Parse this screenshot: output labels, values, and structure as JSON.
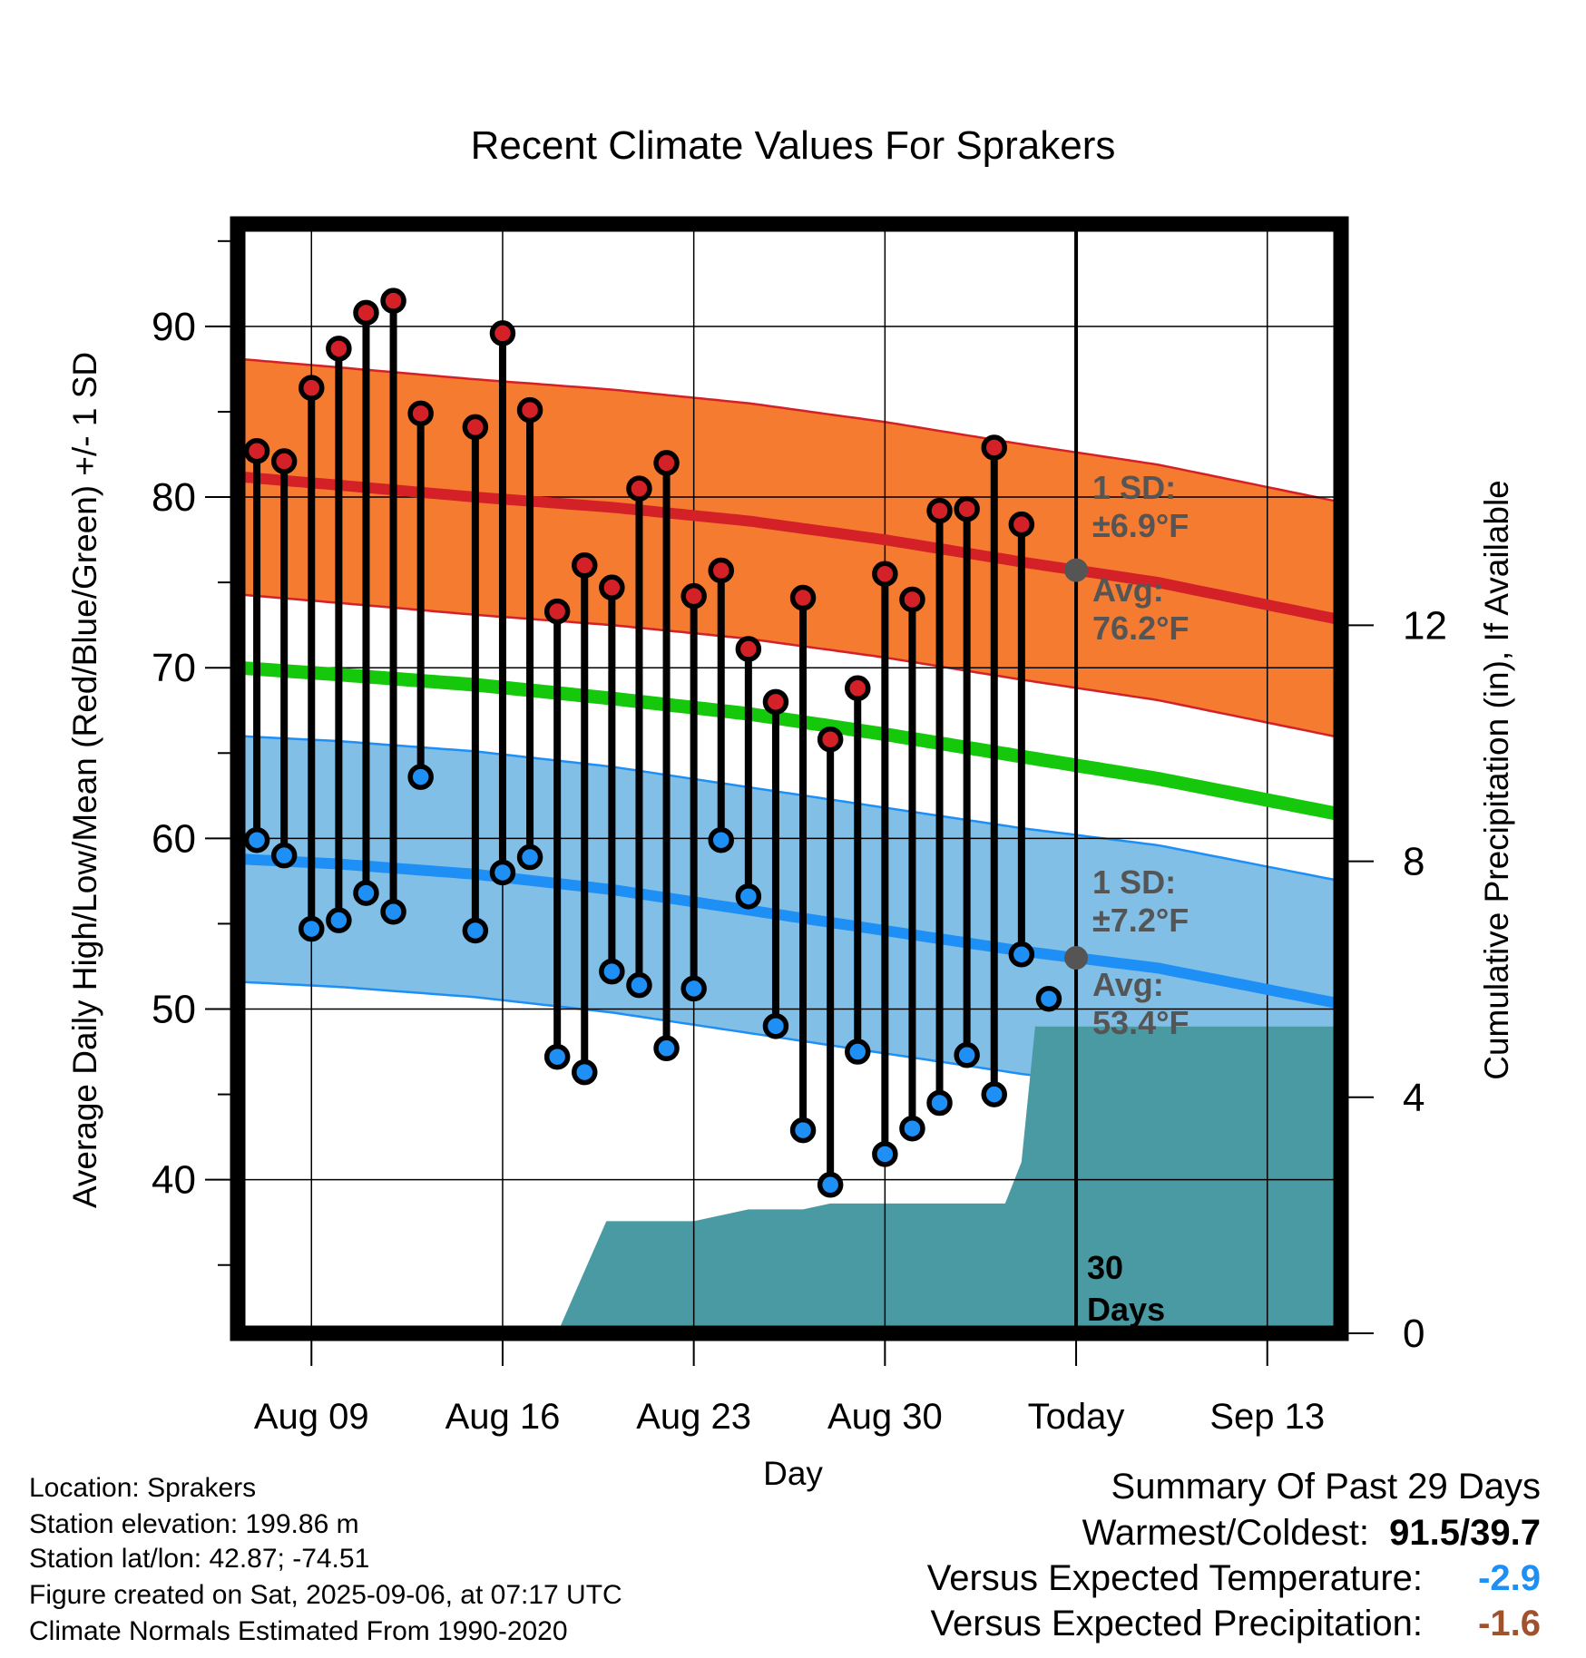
{
  "chart_data": {
    "type": "line",
    "title": "Recent Climate Values For Sprakers",
    "xlabel": "Day",
    "ylabel": "Average Daily High/Low/Mean (Red/Blue/Green) +/- 1 SD",
    "y2label": "Cumulative Precipitation (in), If Available",
    "ylim": [
      31,
      96
    ],
    "y2lim": [
      0,
      18.8
    ],
    "y_ticks": [
      40,
      50,
      60,
      70,
      80,
      90
    ],
    "y2_ticks": [
      0,
      4,
      8,
      12
    ],
    "x_tick_labels": [
      "Aug 09",
      "Aug 16",
      "Aug 23",
      "Aug 30",
      "Today",
      "Sep 13"
    ],
    "x_tick_days": [
      9,
      16,
      23,
      30,
      37,
      44
    ],
    "xlim": [
      6.3,
      46.7
    ],
    "grid": true,
    "today_day": 37,
    "observed_days": [
      7,
      8,
      9,
      10,
      11,
      12,
      13,
      15,
      16,
      17,
      18,
      19,
      20,
      21,
      22,
      23,
      24,
      25,
      26,
      27,
      28,
      29,
      30,
      31,
      32,
      33,
      34,
      35,
      36
    ],
    "observed_high": [
      82.7,
      82.1,
      86.4,
      88.7,
      90.8,
      91.5,
      84.9,
      84.1,
      89.6,
      85.1,
      73.3,
      76.0,
      74.7,
      80.5,
      82.0,
      74.2,
      75.7,
      71.1,
      68.0,
      74.1,
      65.8,
      68.8,
      75.5,
      74.0,
      79.2,
      79.3,
      82.9,
      78.4,
      null
    ],
    "observed_low": [
      59.9,
      59.0,
      54.7,
      55.2,
      56.8,
      55.7,
      63.6,
      54.6,
      58.0,
      58.9,
      47.2,
      46.3,
      52.2,
      51.4,
      47.7,
      51.2,
      59.9,
      56.6,
      49.0,
      42.9,
      39.7,
      47.5,
      41.5,
      43.0,
      44.5,
      47.3,
      45.0,
      53.2,
      50.6
    ],
    "normal_days": [
      6.3,
      10,
      15,
      20,
      25,
      30,
      35,
      40,
      46.7
    ],
    "normal_high": [
      81.2,
      80.7,
      80.0,
      79.4,
      78.6,
      77.5,
      76.2,
      75.0,
      72.8
    ],
    "normal_low": [
      58.8,
      58.5,
      57.9,
      57.0,
      55.8,
      54.6,
      53.4,
      52.4,
      50.3
    ],
    "normal_mean": [
      70.0,
      69.6,
      69.0,
      68.2,
      67.3,
      66.1,
      64.8,
      63.5,
      61.4
    ],
    "high_sd": 6.9,
    "low_sd": 7.2,
    "precip_days": [
      6.3,
      16,
      16.3,
      16.5,
      16.9,
      17.5,
      18,
      19.8,
      23,
      24,
      25,
      26,
      27,
      28,
      29,
      30,
      31,
      32,
      33,
      34,
      34.4,
      35,
      35.5,
      46.7
    ],
    "precip_cum": [
      0,
      0,
      0,
      0,
      0,
      0,
      0,
      1.9,
      1.9,
      2.0,
      2.1,
      2.1,
      2.1,
      2.2,
      2.2,
      2.2,
      2.2,
      2.2,
      2.2,
      2.2,
      2.2,
      2.9,
      5.2,
      5.2
    ],
    "high_sd_label_line1": "1 SD:",
    "high_sd_label_line2": "±6.9°F",
    "high_avg_label_line1": "Avg:",
    "high_avg_label_line2": "76.2°F",
    "low_sd_label_line1": "1 SD:",
    "low_sd_label_line2": "±7.2°F",
    "low_avg_label_line1": "Avg:",
    "low_avg_label_line2": "53.4°F",
    "precip_label_line1": "30",
    "precip_label_line2": "Days",
    "colors": {
      "high_band": "#f47b30",
      "high_line": "#d42027",
      "low_band": "#82bfe7",
      "low_line": "#1e8ff5",
      "mean_line": "#16c80c",
      "precip_fill": "#4a9aa3",
      "high_marker": "#d42027",
      "low_marker": "#1e8ff5",
      "annotation": "#555555",
      "today_dot": "#555555"
    }
  },
  "info": {
    "location": "Location: Sprakers",
    "elevation": "Station elevation: 199.86 m",
    "latlon": "Station lat/lon: 42.87; -74.51",
    "created": "Figure created on Sat, 2025-09-06, at 07:17 UTC",
    "normals": "Climate Normals Estimated From 1990-2020"
  },
  "summary": {
    "title": "Summary Of Past 29 Days",
    "warmest_coldest_label": "Warmest/Coldest:",
    "warmest_coldest_value": "91.5/39.7",
    "temp_label": "Versus Expected Temperature:",
    "temp_value": "-2.9",
    "temp_color": "#1e8ff5",
    "precip_label": "Versus Expected Precipitation:",
    "precip_value": "-1.6",
    "precip_color": "#a0522d"
  }
}
